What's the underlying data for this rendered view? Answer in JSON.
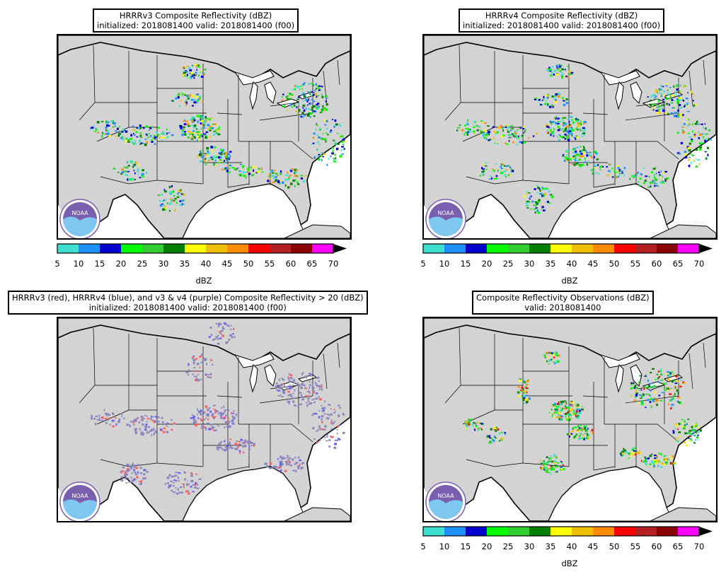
{
  "panels": [
    {
      "id": "p1",
      "line1": "HRRRv3 Composite Reflectivity (dBZ)",
      "line2": "initialized: 2018081400 valid: 2018081400 (f00)",
      "mode": "refl",
      "seed": 11,
      "has_colorbar": true
    },
    {
      "id": "p2",
      "line1": "HRRRv4 Composite Reflectivity (dBZ)",
      "line2": "initialized: 2018081400 valid: 2018081400 (f00)",
      "mode": "refl",
      "seed": 23,
      "has_colorbar": true
    },
    {
      "id": "p3",
      "line1": "HRRRv3 (red), HRRRv4 (blue), and v3 & v4 (purple) Composite Reflectivity > 20 (dBZ)",
      "line2": "initialized: 2018081400 valid: 2018081400 (f00)",
      "mode": "overlap",
      "seed": 37,
      "has_colorbar": false
    },
    {
      "id": "p4",
      "line1": "Composite Reflectivity Observations (dBZ)",
      "line2": "valid: 2018081400",
      "mode": "obs",
      "seed": 53,
      "has_colorbar": true
    }
  ],
  "colorbar": {
    "label": "dBZ",
    "ticks": [
      "5",
      "10",
      "15",
      "20",
      "25",
      "30",
      "35",
      "40",
      "45",
      "50",
      "55",
      "60",
      "65",
      "70"
    ],
    "colors": [
      "#40e0d0",
      "#1e90ff",
      "#0000cd",
      "#00ff00",
      "#32cd32",
      "#008000",
      "#ffff00",
      "#f0c000",
      "#ff8c00",
      "#ff0000",
      "#b22222",
      "#8b0000",
      "#ff00ff"
    ]
  },
  "overlap_colors": {
    "v3": "#ff6060",
    "v4": "#6060ff",
    "both": "#8a86bd"
  },
  "logo_text": "NOAA",
  "logo_colors": {
    "ring": "#7a5fb0",
    "wave": "#7ec8f0",
    "bird": "#ffffff"
  }
}
